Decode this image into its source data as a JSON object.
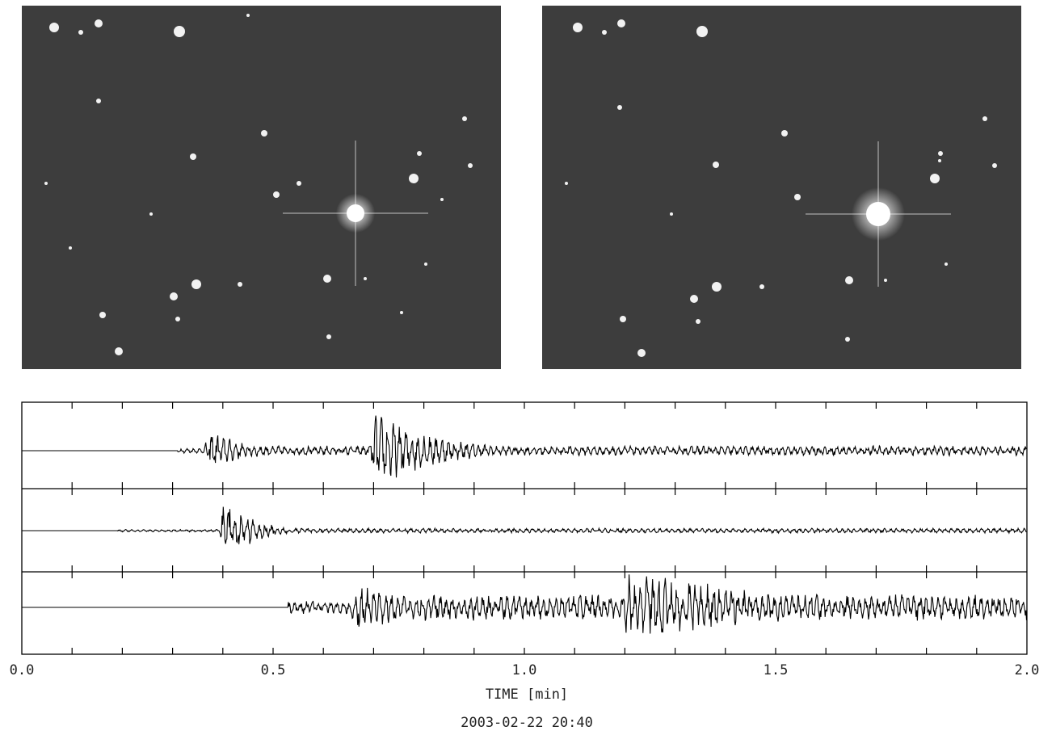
{
  "photos": [
    {
      "label": "",
      "colors": {
        "sky": "#3d3d3d",
        "star": "#f2f2f2"
      }
    },
    {
      "label": "",
      "colors": {
        "sky": "#3d3d3d",
        "star": "#f2f2f2"
      }
    }
  ],
  "chart_data": {
    "type": "line",
    "title": "",
    "xlabel": "TIME [min]",
    "ylabel": "",
    "timestamp": "2003-02-22 20:40",
    "xlim": [
      0.0,
      2.0
    ],
    "x_ticks": [
      0.0,
      0.5,
      1.0,
      1.5,
      2.0
    ],
    "x_tick_labels": [
      "0.0",
      "0.5",
      "1.0",
      "1.5",
      "2.0"
    ],
    "grid": false,
    "series": [
      {
        "onset_min": 0.31,
        "bursts": [
          {
            "t": 0.37,
            "amp": 0.5,
            "decay": 0.08
          },
          {
            "t": 0.7,
            "amp": 1.0,
            "decay": 0.12
          }
        ],
        "tail_amp": 0.12,
        "end_min": 2.0
      },
      {
        "onset_min": 0.19,
        "bursts": [
          {
            "t": 0.4,
            "amp": 1.0,
            "decay": 0.05
          }
        ],
        "tail_amp": 0.06,
        "end_min": 2.0
      },
      {
        "onset_min": 0.53,
        "bursts": [
          {
            "t": 0.66,
            "amp": 0.6,
            "decay": 0.2
          },
          {
            "t": 1.2,
            "amp": 1.0,
            "decay": 0.35
          }
        ],
        "tail_amp": 0.35,
        "end_min": 2.0
      }
    ],
    "colors": {
      "trace": "#000000",
      "frame": "#000000"
    }
  }
}
